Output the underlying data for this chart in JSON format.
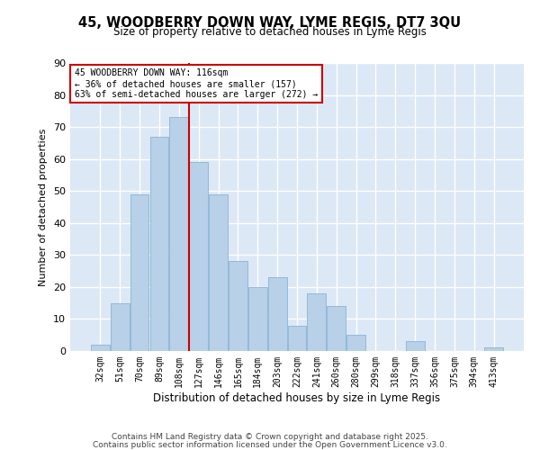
{
  "title1": "45, WOODBERRY DOWN WAY, LYME REGIS, DT7 3QU",
  "title2": "Size of property relative to detached houses in Lyme Regis",
  "xlabel": "Distribution of detached houses by size in Lyme Regis",
  "ylabel": "Number of detached properties",
  "bar_labels": [
    "32sqm",
    "51sqm",
    "70sqm",
    "89sqm",
    "108sqm",
    "127sqm",
    "146sqm",
    "165sqm",
    "184sqm",
    "203sqm",
    "222sqm",
    "241sqm",
    "260sqm",
    "280sqm",
    "299sqm",
    "318sqm",
    "337sqm",
    "356sqm",
    "375sqm",
    "394sqm",
    "413sqm"
  ],
  "bar_values": [
    2,
    15,
    49,
    67,
    73,
    59,
    49,
    28,
    20,
    23,
    8,
    18,
    14,
    5,
    0,
    0,
    3,
    0,
    0,
    0,
    1
  ],
  "bar_color": "#b8d0e8",
  "bar_edge_color": "#8ab4d4",
  "vline_x": 4.5,
  "vline_color": "#cc0000",
  "annotation_lines": [
    "45 WOODBERRY DOWN WAY: 116sqm",
    "← 36% of detached houses are smaller (157)",
    "63% of semi-detached houses are larger (272) →"
  ],
  "annotation_box_color": "#ffffff",
  "annotation_box_edge": "#cc0000",
  "ylim": [
    0,
    90
  ],
  "yticks": [
    0,
    10,
    20,
    30,
    40,
    50,
    60,
    70,
    80,
    90
  ],
  "footer1": "Contains HM Land Registry data © Crown copyright and database right 2025.",
  "footer2": "Contains public sector information licensed under the Open Government Licence v3.0.",
  "bg_color": "#dce8f5",
  "grid_color": "#ffffff",
  "fig_bg": "#ffffff"
}
